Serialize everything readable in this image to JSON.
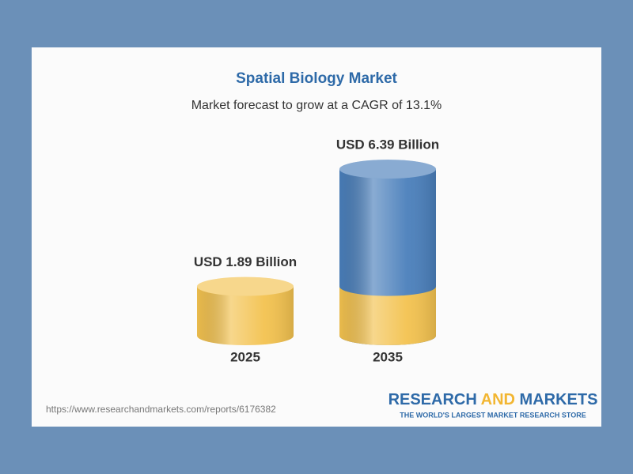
{
  "chart_data": {
    "type": "cylinder",
    "title": "Spatial Biology Market",
    "subtitle": "Market forecast to grow at a CAGR of 13.1%",
    "categories": [
      "2025",
      "2035"
    ],
    "values": [
      1.89,
      6.39
    ],
    "value_labels": [
      "USD 1.89 Billion",
      "USD 6.39 Billion"
    ],
    "color": "#f3c24f",
    "growth_color": "#4a7fbb"
  },
  "footer": {
    "url": "https://www.researchandmarkets.com/reports/6176382",
    "brand": [
      "RESEARCH",
      "AND",
      "MARKETS"
    ],
    "tagline": "THE WORLD'S LARGEST MARKET RESEARCH STORE"
  }
}
